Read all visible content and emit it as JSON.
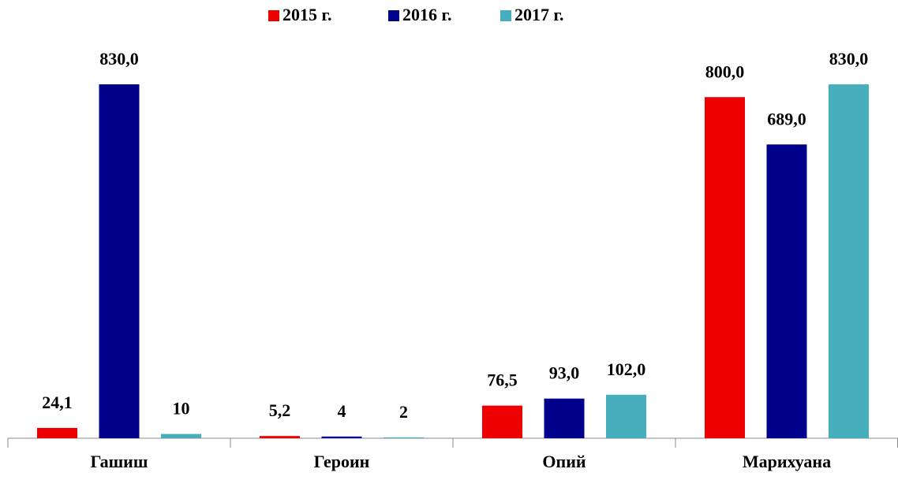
{
  "chart_data": {
    "type": "bar",
    "categories": [
      "Гашиш",
      "Героин",
      "Опий",
      "Марихуана"
    ],
    "series": [
      {
        "name": "2015 г.",
        "color": "#ee0000",
        "values": [
          24.1,
          5.2,
          76.5,
          800
        ],
        "value_labels": [
          "24,1",
          "5,2",
          "76,5",
          "800,0"
        ]
      },
      {
        "name": "2016 г.",
        "color": "#00008b",
        "values": [
          830,
          4,
          93,
          689
        ],
        "value_labels": [
          "830,0",
          "4",
          "93,0",
          "689,0"
        ]
      },
      {
        "name": "2017 г.",
        "color": "#46aebd",
        "values": [
          10,
          2,
          102,
          830
        ],
        "value_labels": [
          "10",
          "2",
          "102,0",
          "830,0"
        ]
      }
    ],
    "legend": "top"
  }
}
